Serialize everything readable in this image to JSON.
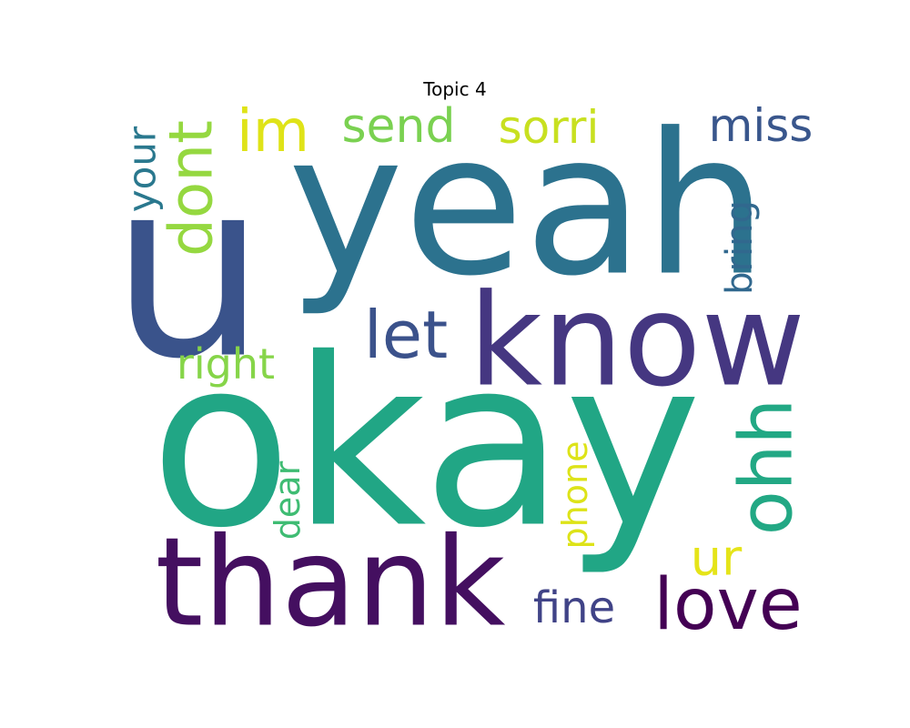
{
  "chart_data": {
    "type": "wordcloud",
    "title": "Topic 4",
    "background": "#ffffff",
    "colormap": "viridis",
    "words": [
      {
        "text": "okay",
        "color": "#21a685"
      },
      {
        "text": "u",
        "color": "#3a538b"
      },
      {
        "text": "yeah",
        "color": "#2c728e"
      },
      {
        "text": "know",
        "color": "#453781"
      },
      {
        "text": "thank",
        "color": "#440f60"
      },
      {
        "text": "love",
        "color": "#440154"
      },
      {
        "text": "ohh",
        "color": "#22a884"
      },
      {
        "text": "let",
        "color": "#3b528b"
      },
      {
        "text": "dont",
        "color": "#95d840"
      },
      {
        "text": "im",
        "color": "#dfe318"
      },
      {
        "text": "send",
        "color": "#7ad151"
      },
      {
        "text": "sorri",
        "color": "#c8e020"
      },
      {
        "text": "miss",
        "color": "#39568c"
      },
      {
        "text": "your",
        "color": "#2a788e"
      },
      {
        "text": "bring",
        "color": "#31688e"
      },
      {
        "text": "right",
        "color": "#86d549"
      },
      {
        "text": "dear",
        "color": "#3fbc73"
      },
      {
        "text": "phone",
        "color": "#dde318"
      },
      {
        "text": "ur",
        "color": "#e5e419"
      },
      {
        "text": "fine",
        "color": "#404387"
      }
    ]
  }
}
